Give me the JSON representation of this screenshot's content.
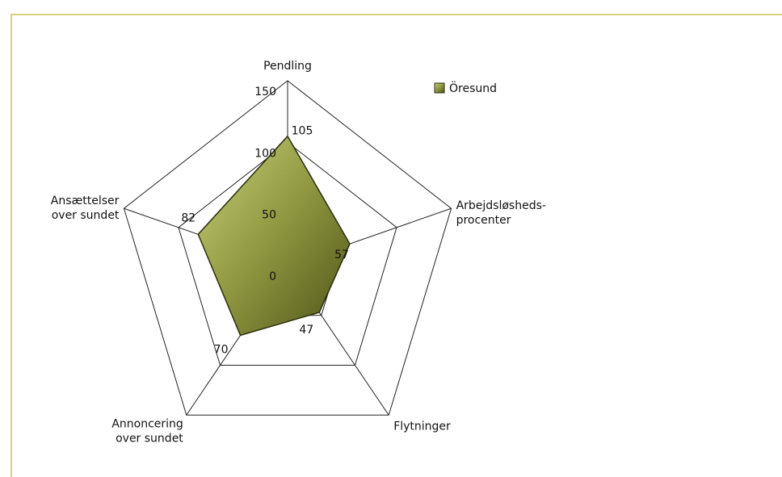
{
  "chart_data": {
    "type": "radar",
    "categories": [
      "Pendling",
      "Arbejdsløsheds-\nprocenter",
      "Flytninger",
      "Annoncering\nover sundet",
      "Ansættelser\nover sundet"
    ],
    "series": [
      {
        "name": "Öresund",
        "color": "#8a8f3a",
        "values": [
          105,
          57,
          47,
          70,
          82
        ]
      }
    ],
    "ylim": [
      0,
      150
    ],
    "yticks": [
      0,
      50,
      100,
      150
    ],
    "grid": true,
    "legend": "upper right"
  }
}
